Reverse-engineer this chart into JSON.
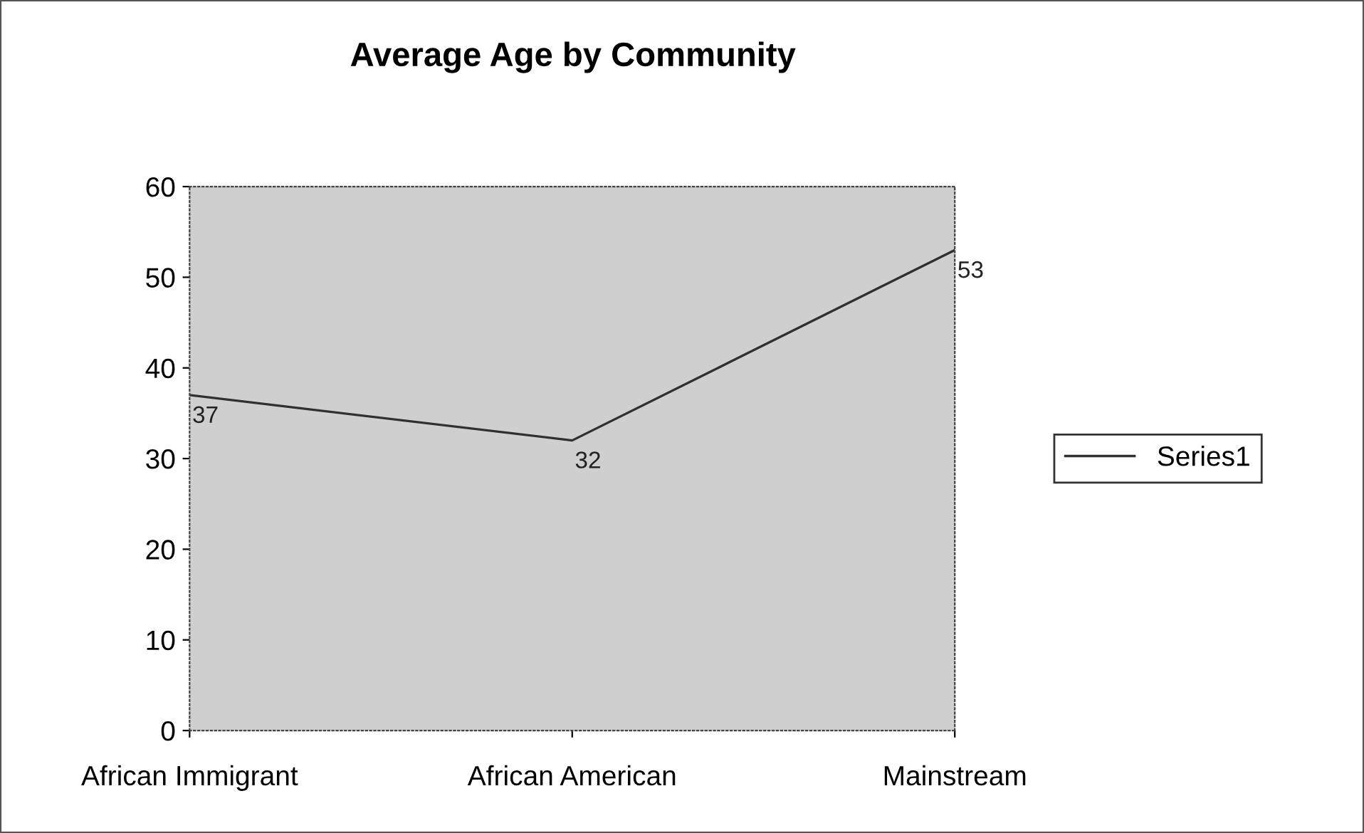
{
  "chart_data": {
    "type": "line",
    "title": "Average Age by Community",
    "categories": [
      "African Immigrant",
      "African American",
      "Mainstream"
    ],
    "series": [
      {
        "name": "Series1",
        "color": "#303030",
        "values": [
          37,
          32,
          53
        ]
      }
    ],
    "ylim": [
      0,
      60
    ],
    "yticks": [
      0,
      10,
      20,
      30,
      40,
      50,
      60
    ],
    "data_labels": true,
    "legend": "right",
    "grid": false,
    "marker": "none",
    "line_style": "solid"
  }
}
